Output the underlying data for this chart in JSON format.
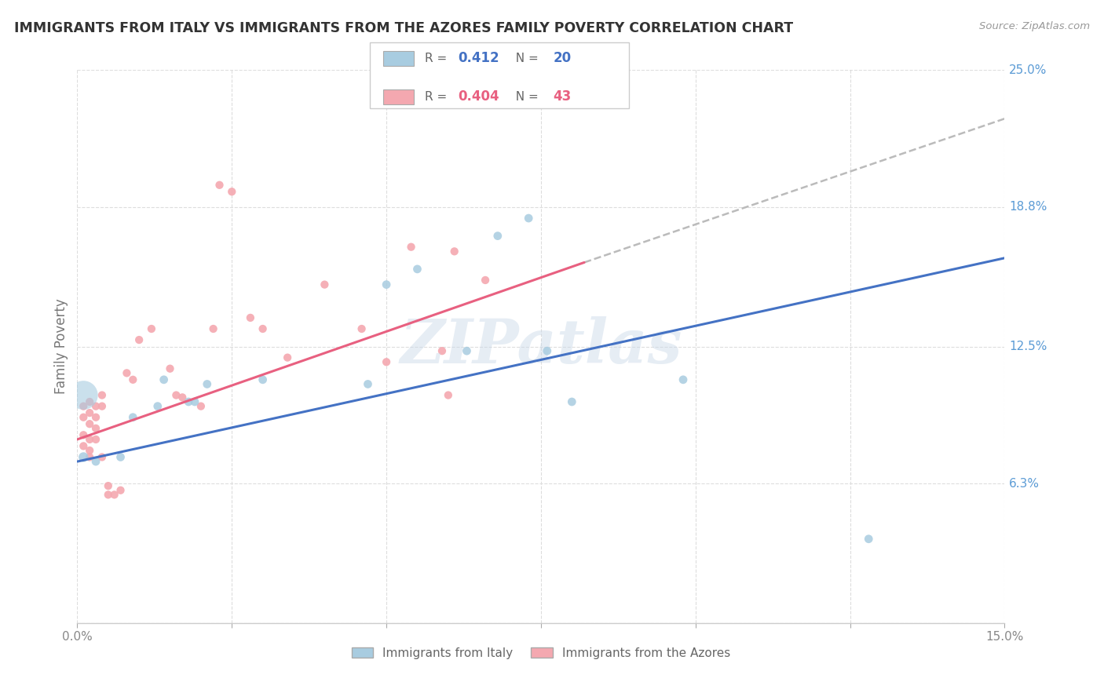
{
  "title": "IMMIGRANTS FROM ITALY VS IMMIGRANTS FROM THE AZORES FAMILY POVERTY CORRELATION CHART",
  "source": "Source: ZipAtlas.com",
  "ylabel": "Family Poverty",
  "xlim": [
    0.0,
    0.15
  ],
  "ylim": [
    0.0,
    0.25
  ],
  "xticks": [
    0.0,
    0.025,
    0.05,
    0.075,
    0.1,
    0.125,
    0.15
  ],
  "ytick_labels_right": [
    "25.0%",
    "18.8%",
    "12.5%",
    "6.3%"
  ],
  "ytick_positions_right": [
    0.25,
    0.188,
    0.125,
    0.063
  ],
  "italy_color": "#a8cce0",
  "azores_color": "#f4a8b0",
  "italy_line_color": "#4472c4",
  "azores_line_color": "#e86080",
  "legend_R_italy": "0.412",
  "legend_N_italy": "20",
  "legend_R_azores": "0.404",
  "legend_N_azores": "43",
  "watermark": "ZIPatlas",
  "italy_scatter": [
    [
      0.001,
      0.075
    ],
    [
      0.003,
      0.073
    ],
    [
      0.007,
      0.075
    ],
    [
      0.009,
      0.093
    ],
    [
      0.013,
      0.098
    ],
    [
      0.014,
      0.11
    ],
    [
      0.018,
      0.1
    ],
    [
      0.019,
      0.1
    ],
    [
      0.021,
      0.108
    ],
    [
      0.03,
      0.11
    ],
    [
      0.047,
      0.108
    ],
    [
      0.05,
      0.153
    ],
    [
      0.055,
      0.16
    ],
    [
      0.063,
      0.123
    ],
    [
      0.068,
      0.175
    ],
    [
      0.073,
      0.183
    ],
    [
      0.076,
      0.123
    ],
    [
      0.08,
      0.1
    ],
    [
      0.098,
      0.11
    ],
    [
      0.128,
      0.038
    ]
  ],
  "italy_sizes": [
    80,
    60,
    60,
    60,
    60,
    60,
    60,
    60,
    60,
    60,
    60,
    60,
    60,
    60,
    60,
    60,
    60,
    60,
    60,
    60
  ],
  "italy_big_bubble": [
    0.001,
    0.103,
    700
  ],
  "azores_scatter": [
    [
      0.001,
      0.093
    ],
    [
      0.001,
      0.098
    ],
    [
      0.001,
      0.085
    ],
    [
      0.001,
      0.08
    ],
    [
      0.002,
      0.09
    ],
    [
      0.002,
      0.095
    ],
    [
      0.002,
      0.1
    ],
    [
      0.002,
      0.083
    ],
    [
      0.002,
      0.078
    ],
    [
      0.002,
      0.075
    ],
    [
      0.003,
      0.088
    ],
    [
      0.003,
      0.093
    ],
    [
      0.003,
      0.098
    ],
    [
      0.003,
      0.083
    ],
    [
      0.004,
      0.075
    ],
    [
      0.004,
      0.098
    ],
    [
      0.004,
      0.103
    ],
    [
      0.005,
      0.062
    ],
    [
      0.005,
      0.058
    ],
    [
      0.006,
      0.058
    ],
    [
      0.007,
      0.06
    ],
    [
      0.008,
      0.113
    ],
    [
      0.009,
      0.11
    ],
    [
      0.01,
      0.128
    ],
    [
      0.012,
      0.133
    ],
    [
      0.015,
      0.115
    ],
    [
      0.016,
      0.103
    ],
    [
      0.017,
      0.102
    ],
    [
      0.02,
      0.098
    ],
    [
      0.022,
      0.133
    ],
    [
      0.023,
      0.198
    ],
    [
      0.025,
      0.195
    ],
    [
      0.028,
      0.138
    ],
    [
      0.03,
      0.133
    ],
    [
      0.034,
      0.12
    ],
    [
      0.04,
      0.153
    ],
    [
      0.046,
      0.133
    ],
    [
      0.05,
      0.118
    ],
    [
      0.054,
      0.17
    ],
    [
      0.059,
      0.123
    ],
    [
      0.061,
      0.168
    ],
    [
      0.066,
      0.155
    ],
    [
      0.06,
      0.103
    ]
  ],
  "background_color": "#ffffff",
  "grid_color": "#dddddd",
  "italy_line_manual": [
    0.0,
    0.073,
    0.15,
    0.165
  ],
  "azores_line_manual": [
    0.0,
    0.083,
    0.082,
    0.163
  ],
  "azores_dash_manual": [
    0.082,
    0.163,
    0.15,
    0.228
  ]
}
